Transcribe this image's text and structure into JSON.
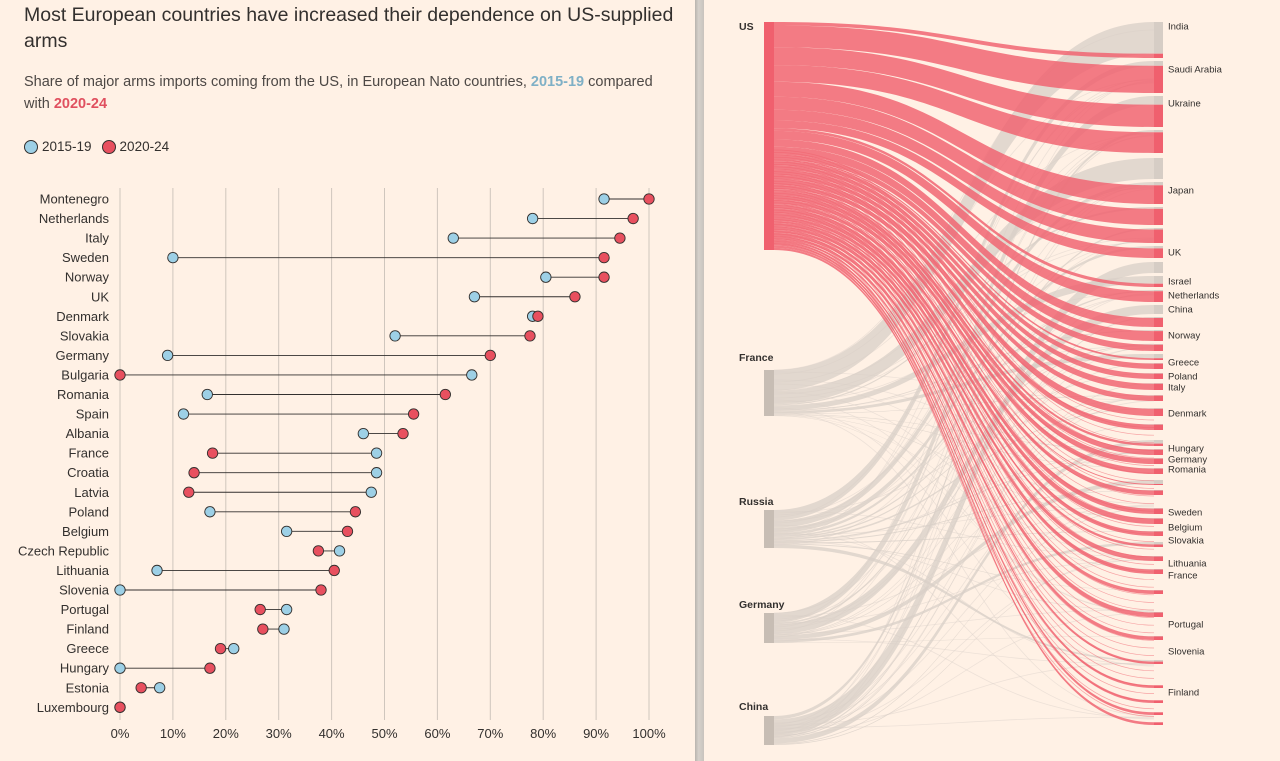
{
  "left": {
    "title": "Most European countries have increased their dependence on US-supplied arms",
    "subtitle_pre": "Share of major arms imports coming from the US, in European Nato countries, ",
    "subtitle_a": "2015-19",
    "subtitle_mid": " compared with ",
    "subtitle_b": "2020-24",
    "legend": [
      {
        "label": "2015-19",
        "color": "#9dd0e6"
      },
      {
        "label": "2020-24",
        "color": "#e8505f"
      }
    ]
  },
  "chart_data": [
    {
      "type": "dumbbell",
      "xlim": [
        0,
        100
      ],
      "xticks": [
        "0%",
        "10%",
        "20%",
        "30%",
        "40%",
        "50%",
        "60%",
        "70%",
        "80%",
        "90%",
        "100%"
      ],
      "series_names": [
        "2015-19",
        "2020-24"
      ],
      "rows": [
        {
          "country": "Montenegro",
          "a": 91.5,
          "b": 100
        },
        {
          "country": "Netherlands",
          "a": 78,
          "b": 97
        },
        {
          "country": "Italy",
          "a": 63,
          "b": 94.5
        },
        {
          "country": "Sweden",
          "a": 10,
          "b": 91.5
        },
        {
          "country": "Norway",
          "a": 80.5,
          "b": 91.5
        },
        {
          "country": "UK",
          "a": 67,
          "b": 86
        },
        {
          "country": "Denmark",
          "a": 78,
          "b": 79
        },
        {
          "country": "Slovakia",
          "a": 52,
          "b": 77.5
        },
        {
          "country": "Germany",
          "a": 9,
          "b": 70
        },
        {
          "country": "Bulgaria",
          "a": 66.5,
          "b": 0
        },
        {
          "country": "Romania",
          "a": 16.5,
          "b": 61.5
        },
        {
          "country": "Spain",
          "a": 12,
          "b": 55.5
        },
        {
          "country": "Albania",
          "a": 46,
          "b": 53.5
        },
        {
          "country": "France",
          "a": 48.5,
          "b": 17.5
        },
        {
          "country": "Croatia",
          "a": 48.5,
          "b": 14
        },
        {
          "country": "Latvia",
          "a": 47.5,
          "b": 13
        },
        {
          "country": "Poland",
          "a": 17,
          "b": 44.5
        },
        {
          "country": "Belgium",
          "a": 31.5,
          "b": 43
        },
        {
          "country": "Czech Republic",
          "a": 41.5,
          "b": 37.5
        },
        {
          "country": "Lithuania",
          "a": 7,
          "b": 40.5
        },
        {
          "country": "Slovenia",
          "a": 0,
          "b": 38
        },
        {
          "country": "Portugal",
          "a": 31.5,
          "b": 26.5
        },
        {
          "country": "Finland",
          "a": 31,
          "b": 27
        },
        {
          "country": "Greece",
          "a": 21.5,
          "b": 19
        },
        {
          "country": "Hungary",
          "a": 0,
          "b": 17
        },
        {
          "country": "Estonia",
          "a": 7.5,
          "b": 4
        },
        {
          "country": "Luxembourg",
          "a": 0,
          "b": 0
        }
      ]
    },
    {
      "type": "sankey",
      "sources": [
        "US",
        "France",
        "Russia",
        "Germany",
        "China"
      ],
      "targets": [
        "India",
        "Saudi Arabia",
        "Ukraine",
        "Japan",
        "UK",
        "Israel",
        "Netherlands",
        "China",
        "Norway",
        "Greece",
        "Poland",
        "Italy",
        "Denmark",
        "Hungary",
        "Germany",
        "Romania",
        "Sweden",
        "Belgium",
        "Slovakia",
        "Lithuania",
        "France",
        "Portugal",
        "Slovenia",
        "Finland"
      ],
      "highlight_color": "#f0606e",
      "muted_color": "#d8cfc7"
    }
  ]
}
